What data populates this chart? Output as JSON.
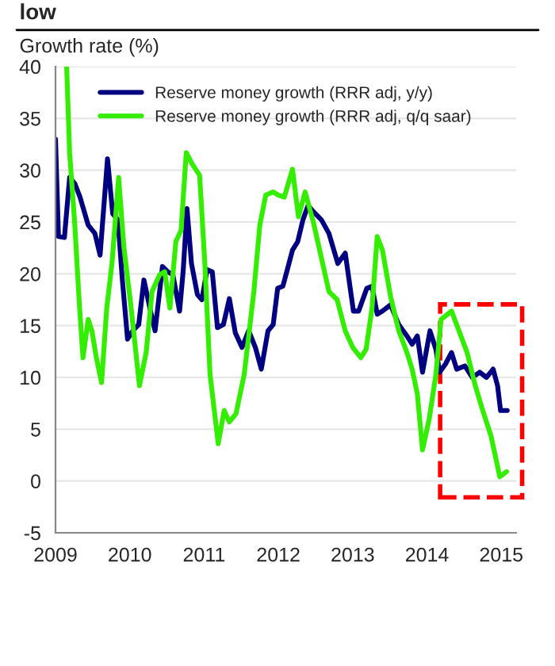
{
  "chart_data": {
    "type": "line",
    "title": "low",
    "ylabel": "Growth rate (%)",
    "xlim": [
      2009,
      2015.2
    ],
    "xticks": [
      2009,
      2010,
      2011,
      2012,
      2013,
      2014,
      2015
    ],
    "ylim": [
      -5,
      40
    ],
    "yticks": [
      -5,
      0,
      5,
      10,
      15,
      20,
      25,
      30,
      35,
      40
    ],
    "grid": "y",
    "legend": "top",
    "marker": "none",
    "line_style": "solid",
    "series": [
      {
        "name": "Reserve money growth (RRR adj, y/y)",
        "color": "#000080",
        "x": [
          2009.0,
          2009.04,
          2009.12,
          2009.19,
          2009.26,
          2009.33,
          2009.44,
          2009.53,
          2009.6,
          2009.7,
          2009.77,
          2009.84,
          2009.9,
          2009.97,
          2010.04,
          2010.12,
          2010.19,
          2010.27,
          2010.34,
          2010.44,
          2010.51,
          2010.58,
          2010.67,
          2010.72,
          2010.77,
          2010.83,
          2010.91,
          2010.97,
          2011.04,
          2011.11,
          2011.18,
          2011.26,
          2011.34,
          2011.42,
          2011.51,
          2011.6,
          2011.69,
          2011.77,
          2011.86,
          2011.93,
          2011.99,
          2012.06,
          2012.12,
          2012.19,
          2012.26,
          2012.33,
          2012.4,
          2012.47,
          2012.58,
          2012.68,
          2012.8,
          2012.9,
          2013.01,
          2013.08,
          2013.19,
          2013.26,
          2013.33,
          2013.4,
          2013.51,
          2013.62,
          2013.73,
          2013.8,
          2013.87,
          2013.94,
          2014.04,
          2014.12,
          2014.17,
          2014.25,
          2014.33,
          2014.4,
          2014.51,
          2014.61,
          2014.71,
          2014.8,
          2014.89,
          2014.95,
          2014.99,
          2015.08
        ],
        "values": [
          33,
          23.6,
          23.5,
          29.3,
          28.7,
          27.4,
          24.7,
          23.9,
          21.8,
          31.1,
          25.8,
          25.2,
          19.4,
          13.7,
          14.5,
          15.1,
          19.4,
          16.7,
          14.5,
          20.7,
          20.2,
          19.9,
          16.4,
          20.4,
          26.3,
          21.0,
          18.0,
          17.5,
          20.4,
          20.2,
          14.8,
          15.1,
          17.6,
          14.3,
          12.9,
          14.5,
          12.9,
          10.8,
          14.5,
          15.1,
          18.6,
          18.8,
          20.4,
          22.3,
          23.1,
          25.2,
          26.6,
          26.0,
          25.2,
          23.9,
          21.0,
          22.0,
          16.4,
          16.4,
          18.6,
          18.8,
          16.1,
          16.4,
          17.0,
          15.1,
          14.0,
          13.2,
          14.0,
          10.5,
          14.5,
          12.7,
          10.5,
          11.3,
          12.4,
          10.8,
          11.1,
          10.0,
          10.5,
          10.0,
          10.8,
          9.2,
          6.8,
          6.8
        ]
      },
      {
        "name": "Reserve money growth (RRR adj, q/q saar)",
        "color": "#33ee00",
        "x": [
          2009.15,
          2009.19,
          2009.26,
          2009.32,
          2009.37,
          2009.44,
          2009.49,
          2009.55,
          2009.62,
          2009.69,
          2009.76,
          2009.85,
          2009.92,
          2010.01,
          2010.13,
          2010.22,
          2010.3,
          2010.4,
          2010.47,
          2010.54,
          2010.62,
          2010.69,
          2010.76,
          2010.84,
          2010.94,
          2011.01,
          2011.08,
          2011.19,
          2011.27,
          2011.34,
          2011.43,
          2011.54,
          2011.67,
          2011.75,
          2011.83,
          2011.93,
          2012.0,
          2012.08,
          2012.19,
          2012.27,
          2012.36,
          2012.47,
          2012.58,
          2012.68,
          2012.79,
          2012.9,
          2013.0,
          2013.11,
          2013.18,
          2013.26,
          2013.33,
          2013.4,
          2013.51,
          2013.62,
          2013.73,
          2013.8,
          2013.87,
          2013.94,
          2014.03,
          2014.12,
          2014.19,
          2014.33,
          2014.43,
          2014.54,
          2014.65,
          2014.75,
          2014.86,
          2014.98,
          2015.07
        ],
        "values": [
          40,
          31.7,
          24.7,
          17.2,
          11.9,
          15.6,
          14.5,
          11.9,
          9.5,
          16.7,
          21.0,
          29.3,
          22.6,
          17.2,
          9.2,
          12.4,
          18.3,
          19.9,
          20.2,
          16.7,
          23.1,
          24.2,
          31.7,
          30.6,
          29.5,
          21.0,
          10.3,
          3.6,
          6.8,
          5.7,
          6.5,
          10.3,
          18.3,
          24.7,
          27.6,
          27.9,
          27.6,
          27.4,
          30.1,
          25.5,
          27.9,
          25.0,
          21.5,
          18.3,
          17.5,
          14.5,
          12.9,
          11.9,
          12.7,
          16.7,
          23.6,
          22.3,
          17.8,
          14.5,
          12.4,
          10.8,
          8.4,
          3.0,
          6.0,
          10.3,
          15.6,
          16.4,
          14.5,
          12.4,
          9.2,
          6.8,
          4.4,
          0.4,
          0.9
        ]
      }
    ]
  }
}
